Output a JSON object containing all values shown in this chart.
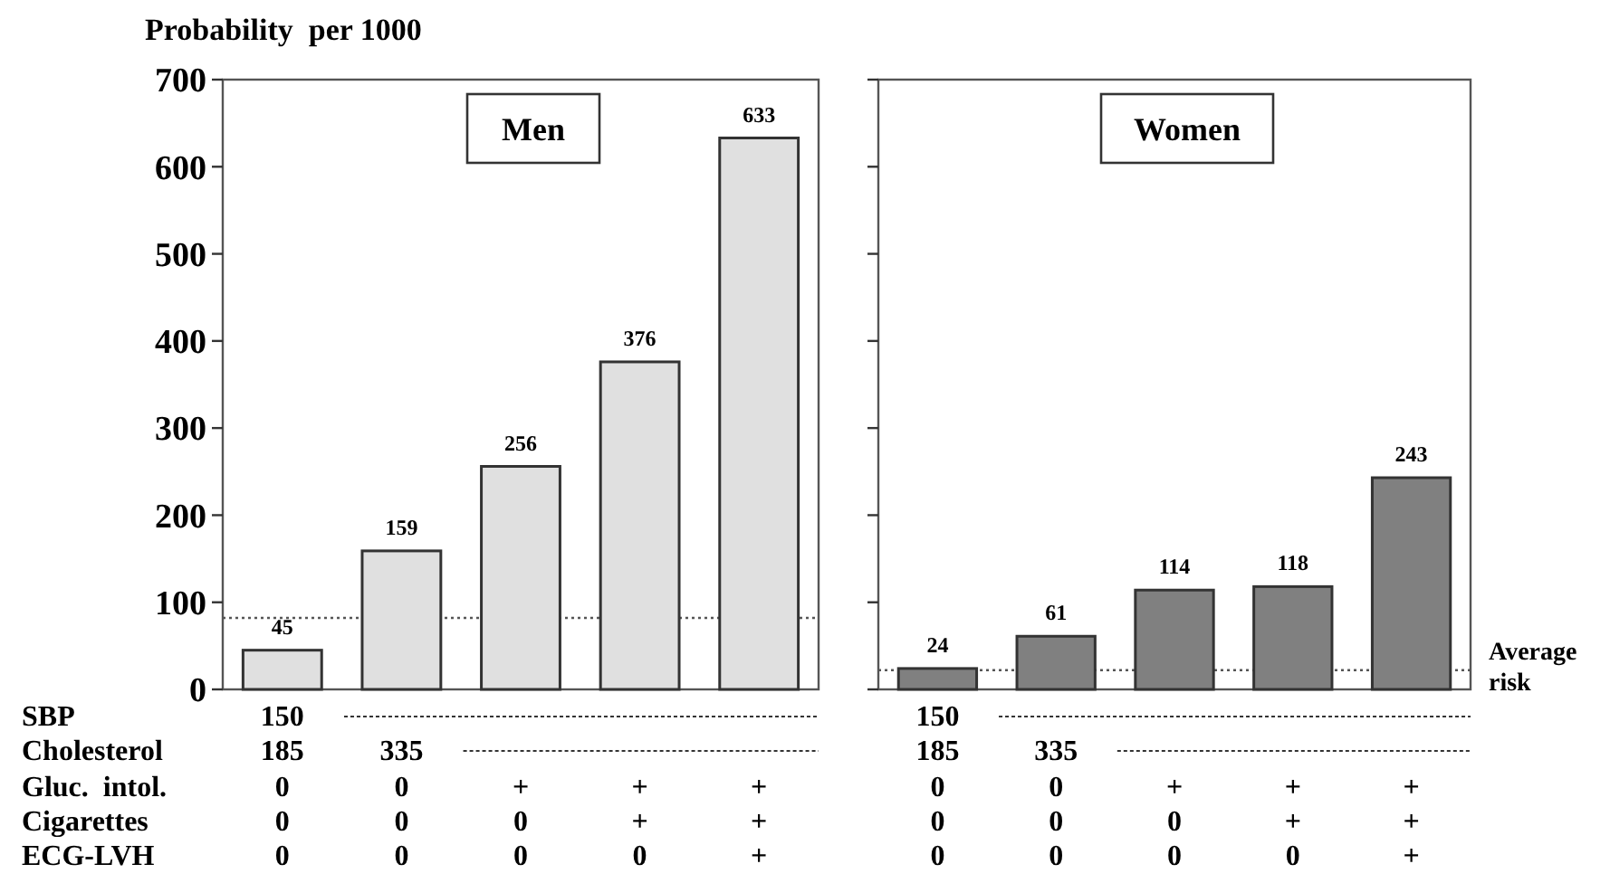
{
  "chart_data": [
    {
      "type": "bar",
      "title": "Men",
      "ylabel": "Probability  per 1000",
      "categories": [
        "150\n185\n0\n0\n0",
        "\n335\n0\n0\n0",
        "\n\n+\n0\n0",
        "\n\n+\n+\n0",
        "\n\n+\n+\n+"
      ],
      "values": [
        45,
        159,
        256,
        376,
        633
      ],
      "color": "#e0e0e0",
      "ylim": [
        0,
        700
      ],
      "yticks": [
        0,
        100,
        200,
        300,
        400,
        500,
        600,
        700
      ],
      "data_labels": true,
      "ref_lines": [
        {
          "axis": "y",
          "value": 82,
          "line_style": "dotted",
          "color": "#555555"
        }
      ],
      "annotations": [
        "SBP",
        "Cholesterol",
        "Gluc.  intol.",
        "Cigarettes",
        "ECG-LVH"
      ]
    },
    {
      "type": "bar",
      "title": "Women",
      "categories": [
        "150\n185\n0\n0\n0",
        "\n335\n0\n0\n0",
        "\n\n+\n0\n0",
        "\n\n+\n+\n0",
        "\n\n+\n+\n+"
      ],
      "values": [
        24,
        61,
        114,
        118,
        243
      ],
      "color": "#808080",
      "ylim": [
        0,
        700
      ],
      "yticks": [
        {
          "value": 0,
          "label": null
        },
        {
          "value": 100,
          "label": null
        },
        {
          "value": 200,
          "label": null
        },
        {
          "value": 300,
          "label": null
        },
        {
          "value": 400,
          "label": null
        },
        {
          "value": 500,
          "label": null
        },
        {
          "value": 600,
          "label": null
        },
        {
          "value": 700,
          "label": null
        }
      ],
      "tick_labels": "x",
      "data_labels": true,
      "ref_lines": [
        {
          "axis": "y",
          "value": 22,
          "label": "Average risk",
          "line_style": "dotted",
          "color": "#555555"
        }
      ]
    }
  ]
}
